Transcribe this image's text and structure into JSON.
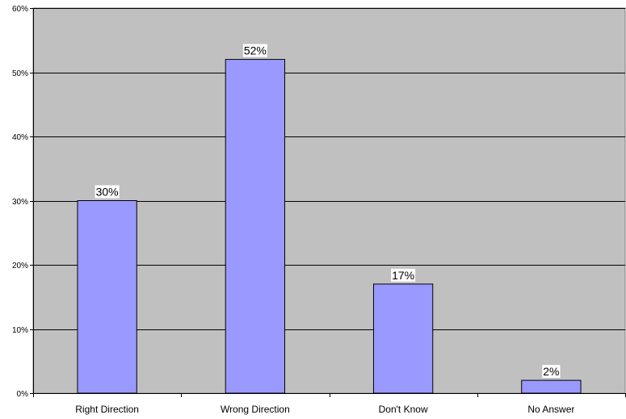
{
  "chart_data": {
    "type": "bar",
    "categories": [
      "Right Direction",
      "Wrong Direction",
      "Don't Know",
      "No Answer"
    ],
    "values": [
      30,
      52,
      17,
      2
    ],
    "data_labels": [
      "30%",
      "52%",
      "17%",
      "2%"
    ],
    "ylim": [
      0,
      60
    ],
    "yticks": [
      0,
      10,
      20,
      30,
      40,
      50,
      60
    ],
    "ytick_labels": [
      "0%",
      "10%",
      "20%",
      "30%",
      "40%",
      "50%",
      "60%"
    ],
    "grid": true,
    "colors": {
      "bar_fill": "#9999ff",
      "plot_bg": "#c0c0c0",
      "gridline": "#000000",
      "bar_stroke": "#000000"
    }
  }
}
